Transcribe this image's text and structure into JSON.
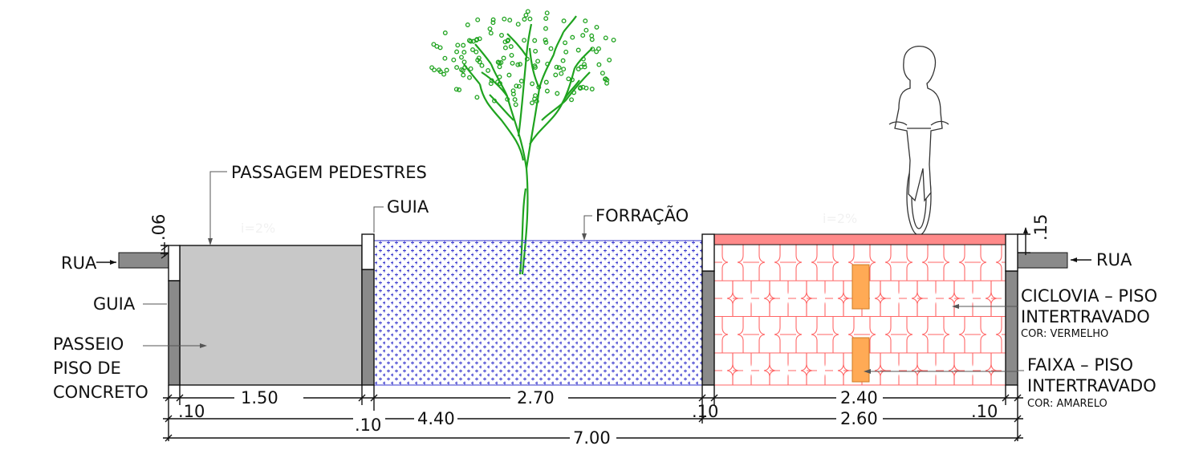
{
  "labels": {
    "rua_left": "RUA",
    "rua_right": "RUA",
    "guia_left": "GUIA",
    "guia_top": "GUIA",
    "passeio_1": "PASSEIO",
    "passeio_2": "PISO DE",
    "passeio_3": "CONCRETO",
    "passagem": "PASSAGEM  PEDESTRES",
    "forracao": "FORRAÇÃO",
    "ciclovia_1": "CICLOVIA – PISO",
    "ciclovia_2": "INTERTRAVADO",
    "ciclovia_cor": "COR: VERMELHO",
    "faixa_1": "FAIXA – PISO",
    "faixa_2": "INTERTRAVADO",
    "faixa_cor": "COR: AMARELO",
    "slope_left": "i=2%",
    "slope_right": "i=2%"
  },
  "dimensions": {
    "curb_h_left": ".06",
    "curb_h_right": ".15",
    "guia_left_w": ".10",
    "passeio_w": "1.50",
    "forracao_w": "2.70",
    "guia_mid_w": ".10",
    "ciclovia_w": "2.40",
    "guia_right_w": ".10",
    "subtotal_left": "4.40",
    "subtotal_right": "2.60",
    "total": "7.00"
  },
  "colors": {
    "ciclovia_top": "#ff8a8a",
    "ciclovia_pattern": "#ff6666",
    "faixa": "#ffaa55",
    "forracao_pattern": "#3333cc",
    "passeio": "#c8c8c8",
    "guia": "#8a8a8a",
    "road": "#8a8a8a",
    "tree": "#1fa31f"
  },
  "icons": {
    "tree": "tree-icon",
    "cyclist": "cyclist-icon"
  }
}
